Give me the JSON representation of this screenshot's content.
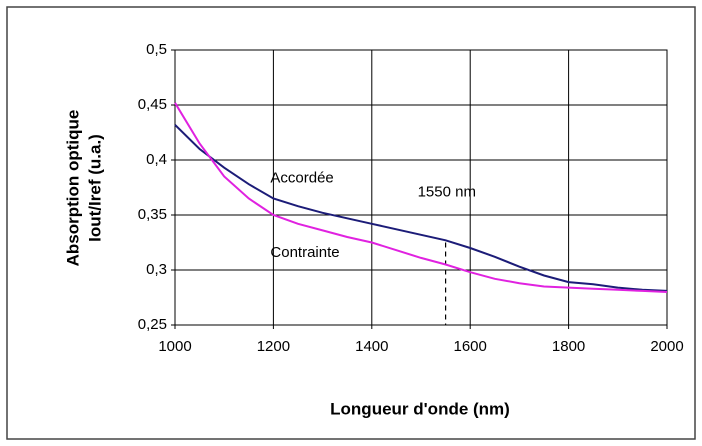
{
  "chart_data": {
    "type": "line",
    "xlabel": "Longueur d'onde (nm)",
    "ylabel": [
      "Absorption optique",
      "Iout/Iref (u.a.)"
    ],
    "x": [
      1000,
      1050,
      1100,
      1150,
      1200,
      1250,
      1300,
      1350,
      1400,
      1450,
      1500,
      1550,
      1600,
      1650,
      1700,
      1750,
      1800,
      1850,
      1900,
      1950,
      2000
    ],
    "series": [
      {
        "name": "Accordée",
        "color": "#1c1c78",
        "values": [
          0.432,
          0.41,
          0.393,
          0.378,
          0.365,
          0.358,
          0.352,
          0.347,
          0.342,
          0.337,
          0.332,
          0.327,
          0.32,
          0.312,
          0.303,
          0.295,
          0.289,
          0.287,
          0.284,
          0.282,
          0.281
        ]
      },
      {
        "name": "Contrainte",
        "color": "#e022e0",
        "values": [
          0.452,
          0.415,
          0.385,
          0.365,
          0.35,
          0.342,
          0.336,
          0.33,
          0.325,
          0.318,
          0.311,
          0.305,
          0.298,
          0.292,
          0.288,
          0.285,
          0.284,
          0.283,
          0.282,
          0.281,
          0.28
        ]
      }
    ],
    "xlim": [
      1000,
      2000
    ],
    "xticks": [
      1000,
      1200,
      1400,
      1600,
      1800,
      2000
    ],
    "ylim": [
      0.25,
      0.5
    ],
    "yticks": [
      {
        "value": 0.25,
        "label": "0,25"
      },
      {
        "value": 0.3,
        "label": "0,3"
      },
      {
        "value": 0.35,
        "label": "0,35"
      },
      {
        "value": 0.4,
        "label": "0,4"
      },
      {
        "value": 0.45,
        "label": "0,45"
      },
      {
        "value": 0.5,
        "label": "0,5"
      }
    ],
    "grid": true,
    "reference_line": {
      "x": 1550,
      "y": 0.325,
      "label": "1550 nm"
    }
  }
}
